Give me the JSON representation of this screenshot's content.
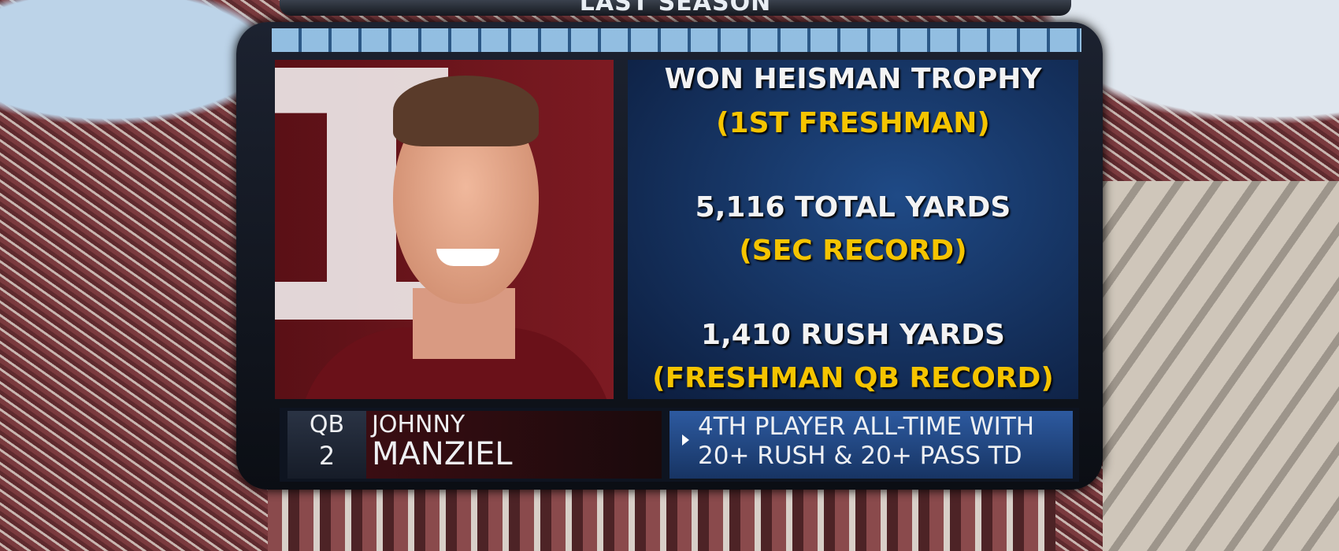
{
  "header": {
    "title": "LAST SEASON"
  },
  "stats": [
    {
      "main": "WON HEISMAN TROPHY",
      "note": "(1ST FRESHMAN)"
    },
    {
      "main": "5,116 TOTAL YARDS",
      "note": "(SEC RECORD)"
    },
    {
      "main": "1,410 RUSH YARDS",
      "note": "(FRESHMAN QB RECORD)"
    }
  ],
  "player": {
    "position": "QB",
    "number": "2",
    "first_name": "JOHNNY",
    "last_name": "MANZIEL"
  },
  "fact": {
    "line1": "4TH PLAYER ALL-TIME WITH",
    "line2": "20+ RUSH & 20+ PASS TD"
  }
}
